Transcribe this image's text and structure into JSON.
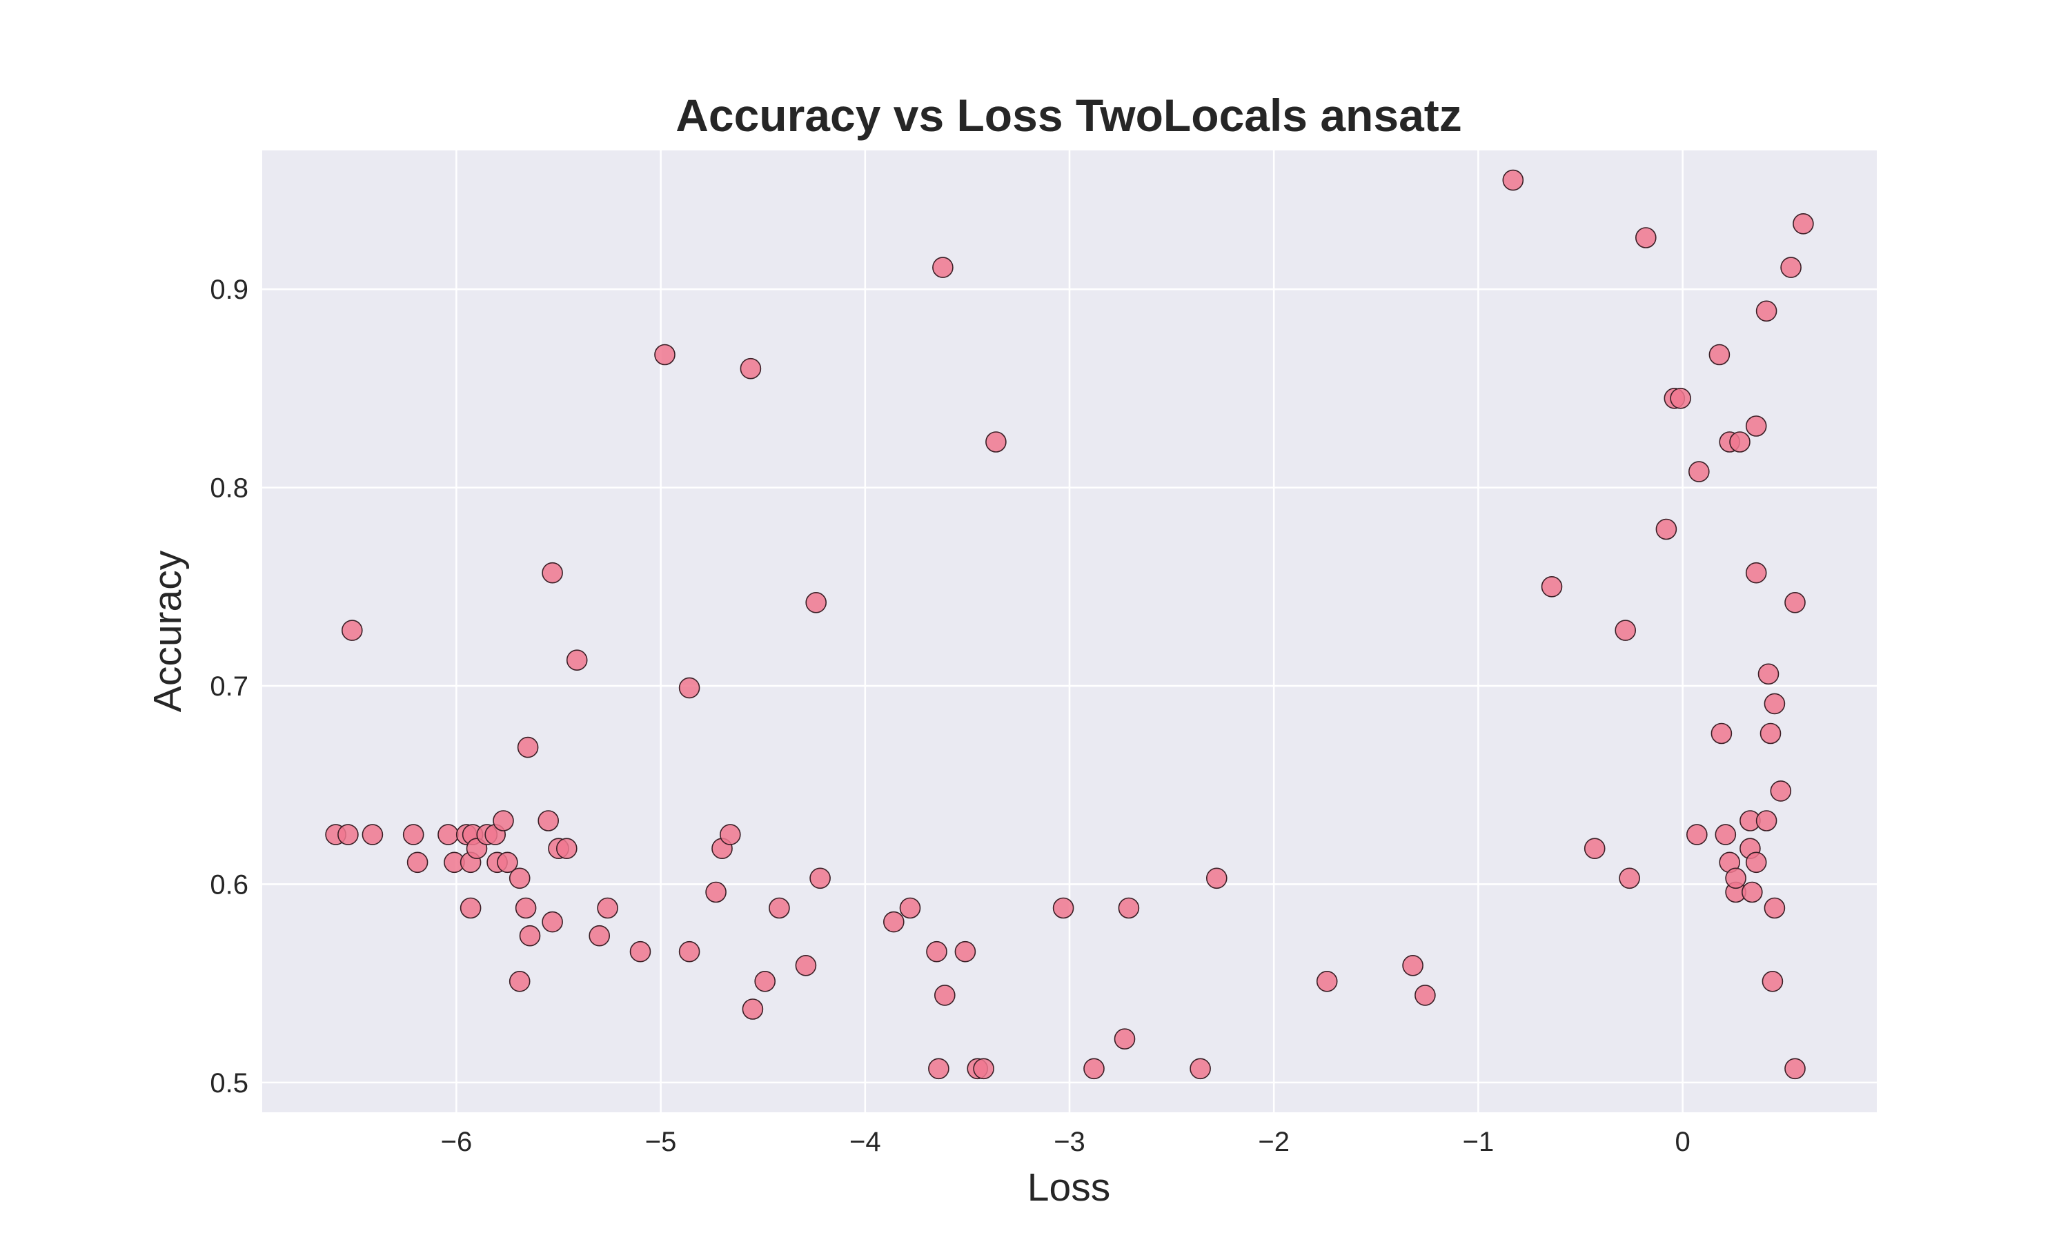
{
  "chart_data": {
    "type": "scatter",
    "title": "Accuracy vs Loss TwoLocals ansatz",
    "xlabel": "Loss",
    "ylabel": "Accuracy",
    "xlim": [
      -6.95,
      0.95
    ],
    "ylim": [
      0.485,
      0.97
    ],
    "x_ticks": [
      -6,
      -5,
      -4,
      -3,
      -2,
      -1,
      0
    ],
    "x_tick_labels": [
      "−6",
      "−5",
      "−4",
      "−3",
      "−2",
      "−1",
      "0"
    ],
    "y_ticks": [
      0.5,
      0.6,
      0.7,
      0.8,
      0.9
    ],
    "y_tick_labels": [
      "0.5",
      "0.6",
      "0.7",
      "0.8",
      "0.9"
    ],
    "grid": true,
    "marker_color": "#f0788f",
    "marker_edge_color": "#3a1f26",
    "background_color": "#eaeaf2",
    "points": [
      {
        "x": -6.59,
        "y": 0.625
      },
      {
        "x": -6.53,
        "y": 0.625
      },
      {
        "x": -6.51,
        "y": 0.728
      },
      {
        "x": -6.41,
        "y": 0.625
      },
      {
        "x": -6.21,
        "y": 0.625
      },
      {
        "x": -6.19,
        "y": 0.611
      },
      {
        "x": -6.04,
        "y": 0.625
      },
      {
        "x": -6.01,
        "y": 0.611
      },
      {
        "x": -5.95,
        "y": 0.625
      },
      {
        "x": -5.93,
        "y": 0.611
      },
      {
        "x": -5.93,
        "y": 0.588
      },
      {
        "x": -5.92,
        "y": 0.625
      },
      {
        "x": -5.9,
        "y": 0.618
      },
      {
        "x": -5.85,
        "y": 0.625
      },
      {
        "x": -5.81,
        "y": 0.625
      },
      {
        "x": -5.8,
        "y": 0.611
      },
      {
        "x": -5.77,
        "y": 0.632
      },
      {
        "x": -5.75,
        "y": 0.611
      },
      {
        "x": -5.69,
        "y": 0.603
      },
      {
        "x": -5.69,
        "y": 0.551
      },
      {
        "x": -5.66,
        "y": 0.588
      },
      {
        "x": -5.65,
        "y": 0.669
      },
      {
        "x": -5.64,
        "y": 0.574
      },
      {
        "x": -5.55,
        "y": 0.632
      },
      {
        "x": -5.53,
        "y": 0.757
      },
      {
        "x": -5.53,
        "y": 0.581
      },
      {
        "x": -5.5,
        "y": 0.618
      },
      {
        "x": -5.46,
        "y": 0.618
      },
      {
        "x": -5.41,
        "y": 0.713
      },
      {
        "x": -5.3,
        "y": 0.574
      },
      {
        "x": -5.26,
        "y": 0.588
      },
      {
        "x": -5.1,
        "y": 0.566
      },
      {
        "x": -4.98,
        "y": 0.867
      },
      {
        "x": -4.86,
        "y": 0.699
      },
      {
        "x": -4.86,
        "y": 0.566
      },
      {
        "x": -4.73,
        "y": 0.596
      },
      {
        "x": -4.7,
        "y": 0.618
      },
      {
        "x": -4.66,
        "y": 0.625
      },
      {
        "x": -4.56,
        "y": 0.86
      },
      {
        "x": -4.55,
        "y": 0.537
      },
      {
        "x": -4.49,
        "y": 0.551
      },
      {
        "x": -4.42,
        "y": 0.588
      },
      {
        "x": -4.29,
        "y": 0.559
      },
      {
        "x": -4.24,
        "y": 0.742
      },
      {
        "x": -4.22,
        "y": 0.603
      },
      {
        "x": -3.86,
        "y": 0.581
      },
      {
        "x": -3.78,
        "y": 0.588
      },
      {
        "x": -3.65,
        "y": 0.566
      },
      {
        "x": -3.64,
        "y": 0.507
      },
      {
        "x": -3.62,
        "y": 0.911
      },
      {
        "x": -3.61,
        "y": 0.544
      },
      {
        "x": -3.51,
        "y": 0.566
      },
      {
        "x": -3.45,
        "y": 0.507
      },
      {
        "x": -3.42,
        "y": 0.507
      },
      {
        "x": -3.36,
        "y": 0.823
      },
      {
        "x": -3.03,
        "y": 0.588
      },
      {
        "x": -2.88,
        "y": 0.507
      },
      {
        "x": -2.73,
        "y": 0.522
      },
      {
        "x": -2.71,
        "y": 0.588
      },
      {
        "x": -2.36,
        "y": 0.507
      },
      {
        "x": -2.28,
        "y": 0.603
      },
      {
        "x": -1.74,
        "y": 0.551
      },
      {
        "x": -1.32,
        "y": 0.559
      },
      {
        "x": -1.26,
        "y": 0.544
      },
      {
        "x": -0.83,
        "y": 0.955
      },
      {
        "x": -0.64,
        "y": 0.75
      },
      {
        "x": -0.43,
        "y": 0.618
      },
      {
        "x": -0.28,
        "y": 0.728
      },
      {
        "x": -0.26,
        "y": 0.603
      },
      {
        "x": -0.18,
        "y": 0.926
      },
      {
        "x": -0.08,
        "y": 0.779
      },
      {
        "x": -0.04,
        "y": 0.845
      },
      {
        "x": -0.01,
        "y": 0.845
      },
      {
        "x": 0.07,
        "y": 0.625
      },
      {
        "x": 0.08,
        "y": 0.808
      },
      {
        "x": 0.18,
        "y": 0.867
      },
      {
        "x": 0.19,
        "y": 0.676
      },
      {
        "x": 0.21,
        "y": 0.625
      },
      {
        "x": 0.23,
        "y": 0.611
      },
      {
        "x": 0.23,
        "y": 0.823
      },
      {
        "x": 0.26,
        "y": 0.596
      },
      {
        "x": 0.26,
        "y": 0.603
      },
      {
        "x": 0.28,
        "y": 0.823
      },
      {
        "x": 0.33,
        "y": 0.632
      },
      {
        "x": 0.33,
        "y": 0.618
      },
      {
        "x": 0.34,
        "y": 0.596
      },
      {
        "x": 0.36,
        "y": 0.611
      },
      {
        "x": 0.36,
        "y": 0.831
      },
      {
        "x": 0.36,
        "y": 0.757
      },
      {
        "x": 0.41,
        "y": 0.889
      },
      {
        "x": 0.41,
        "y": 0.632
      },
      {
        "x": 0.42,
        "y": 0.706
      },
      {
        "x": 0.43,
        "y": 0.676
      },
      {
        "x": 0.44,
        "y": 0.551
      },
      {
        "x": 0.45,
        "y": 0.691
      },
      {
        "x": 0.45,
        "y": 0.588
      },
      {
        "x": 0.48,
        "y": 0.647
      },
      {
        "x": 0.53,
        "y": 0.911
      },
      {
        "x": 0.55,
        "y": 0.742
      },
      {
        "x": 0.55,
        "y": 0.507
      },
      {
        "x": 0.59,
        "y": 0.933
      }
    ]
  }
}
